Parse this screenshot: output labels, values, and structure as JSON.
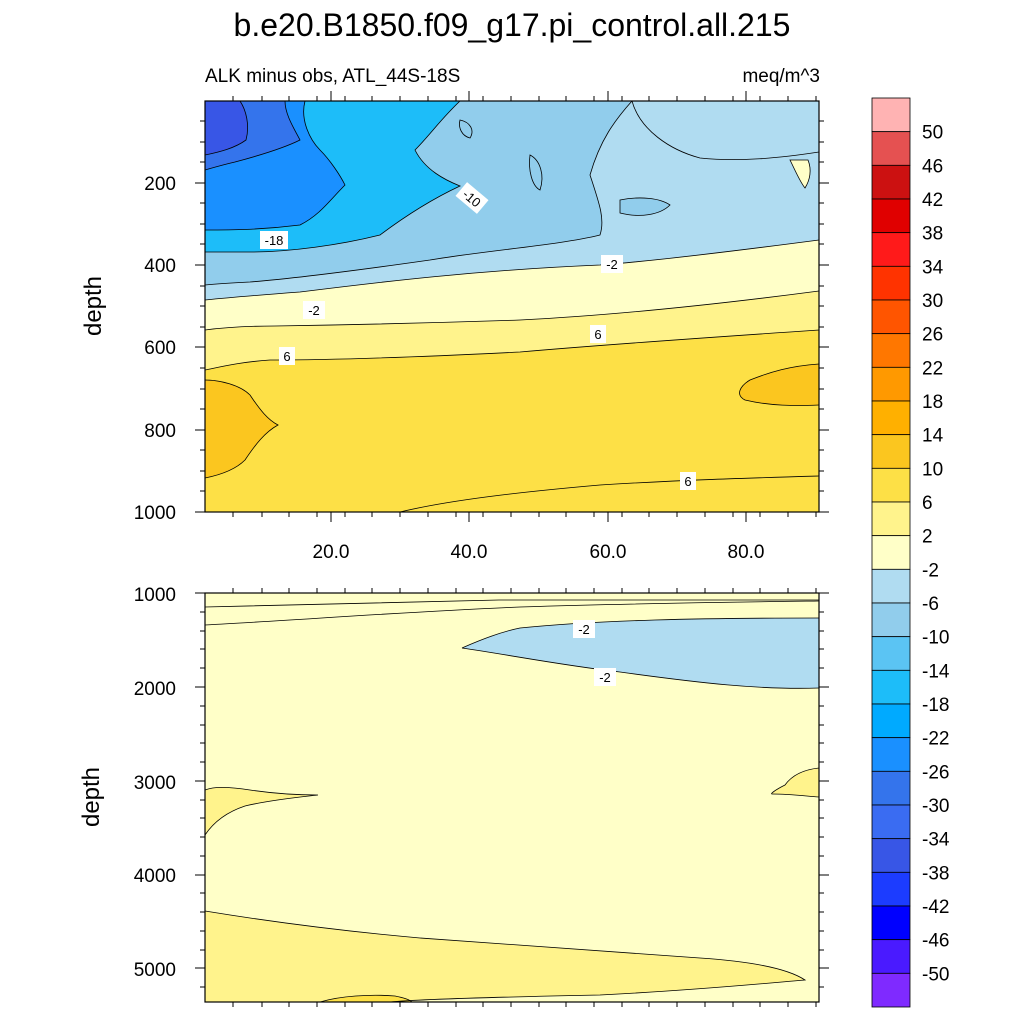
{
  "title": "b.e20.B1850.f09_g17.pi_control.all.215",
  "subtitle_left": "ALK minus obs, ATL_44S-18S",
  "subtitle_right": "meq/m^3",
  "chart_data": [
    {
      "type": "heatmap",
      "panel": "upper",
      "ylabel": "depth",
      "xlabel": "",
      "x_ticks": [
        "20.0",
        "40.0",
        "60.0",
        "80.0"
      ],
      "y_ticks": [
        "200",
        "400",
        "600",
        "800",
        "1000"
      ],
      "xlim": [
        0,
        90
      ],
      "ylim": [
        1000,
        0
      ],
      "y_reversed": true,
      "contour_labels": [
        "-10",
        "-18",
        "-2",
        "-2",
        "6",
        "6",
        "6"
      ],
      "regions": [
        {
          "value_range": [
            -38,
            -34
          ],
          "description": "surface, x 0-8, depth 0-150"
        },
        {
          "value_range": [
            -26,
            -22
          ],
          "description": "x 0-20, depth 0-300"
        },
        {
          "value_range": [
            -18,
            -14
          ],
          "description": "x 0-45, depth 0-350"
        },
        {
          "value_range": [
            -10,
            -6
          ],
          "description": "x 25-90, depth 0-380"
        },
        {
          "value_range": [
            -6,
            -2
          ],
          "description": "depth 250-480"
        },
        {
          "value_range": [
            -2,
            2
          ],
          "description": "depth 450-560"
        },
        {
          "value_range": [
            2,
            6
          ],
          "description": "depth 540-620"
        },
        {
          "value_range": [
            6,
            10
          ],
          "description": "depth 620-1000"
        },
        {
          "value_range": [
            10,
            14
          ],
          "description": "patches x 0-10 and x 78-90, depth 680-850"
        }
      ]
    },
    {
      "type": "heatmap",
      "panel": "lower",
      "ylabel": "depth",
      "xlabel": "",
      "y_ticks": [
        "1000",
        "2000",
        "3000",
        "4000",
        "5000"
      ],
      "xlim": [
        0,
        90
      ],
      "ylim": [
        5375,
        1000
      ],
      "y_reversed": true,
      "contour_labels": [
        "-2",
        "-2"
      ],
      "regions": [
        {
          "value_range": [
            2,
            6
          ],
          "description": "near 1000 and near bottom 4400-5375"
        },
        {
          "value_range": [
            -2,
            2
          ],
          "description": "bulk 1100-4700"
        },
        {
          "value_range": [
            -6,
            -2
          ],
          "description": "tongue x 38-90, depth 1300-2000"
        }
      ]
    }
  ],
  "colorbar": {
    "labels": [
      "50",
      "46",
      "42",
      "38",
      "34",
      "30",
      "26",
      "22",
      "18",
      "14",
      "10",
      "6",
      "2",
      "-2",
      "-6",
      "-10",
      "-14",
      "-18",
      "-22",
      "-26",
      "-30",
      "-34",
      "-38",
      "-42",
      "-46",
      "-50"
    ],
    "colors": [
      "#ffb3b3",
      "#e55151",
      "#cc1111",
      "#e00000",
      "#ff1a1a",
      "#ff3300",
      "#ff5500",
      "#ff7700",
      "#ff9900",
      "#ffb000",
      "#fbc61f",
      "#fde046",
      "#fff38c",
      "#ffffc8",
      "#b0dcf1",
      "#91cdec",
      "#5bc4f3",
      "#1dbdf9",
      "#00aaff",
      "#1a90ff",
      "#3474ec",
      "#3a6cf2",
      "#3856e6",
      "#1c3cff",
      "#0000ff",
      "#4a1aff",
      "#7f2aff"
    ]
  }
}
